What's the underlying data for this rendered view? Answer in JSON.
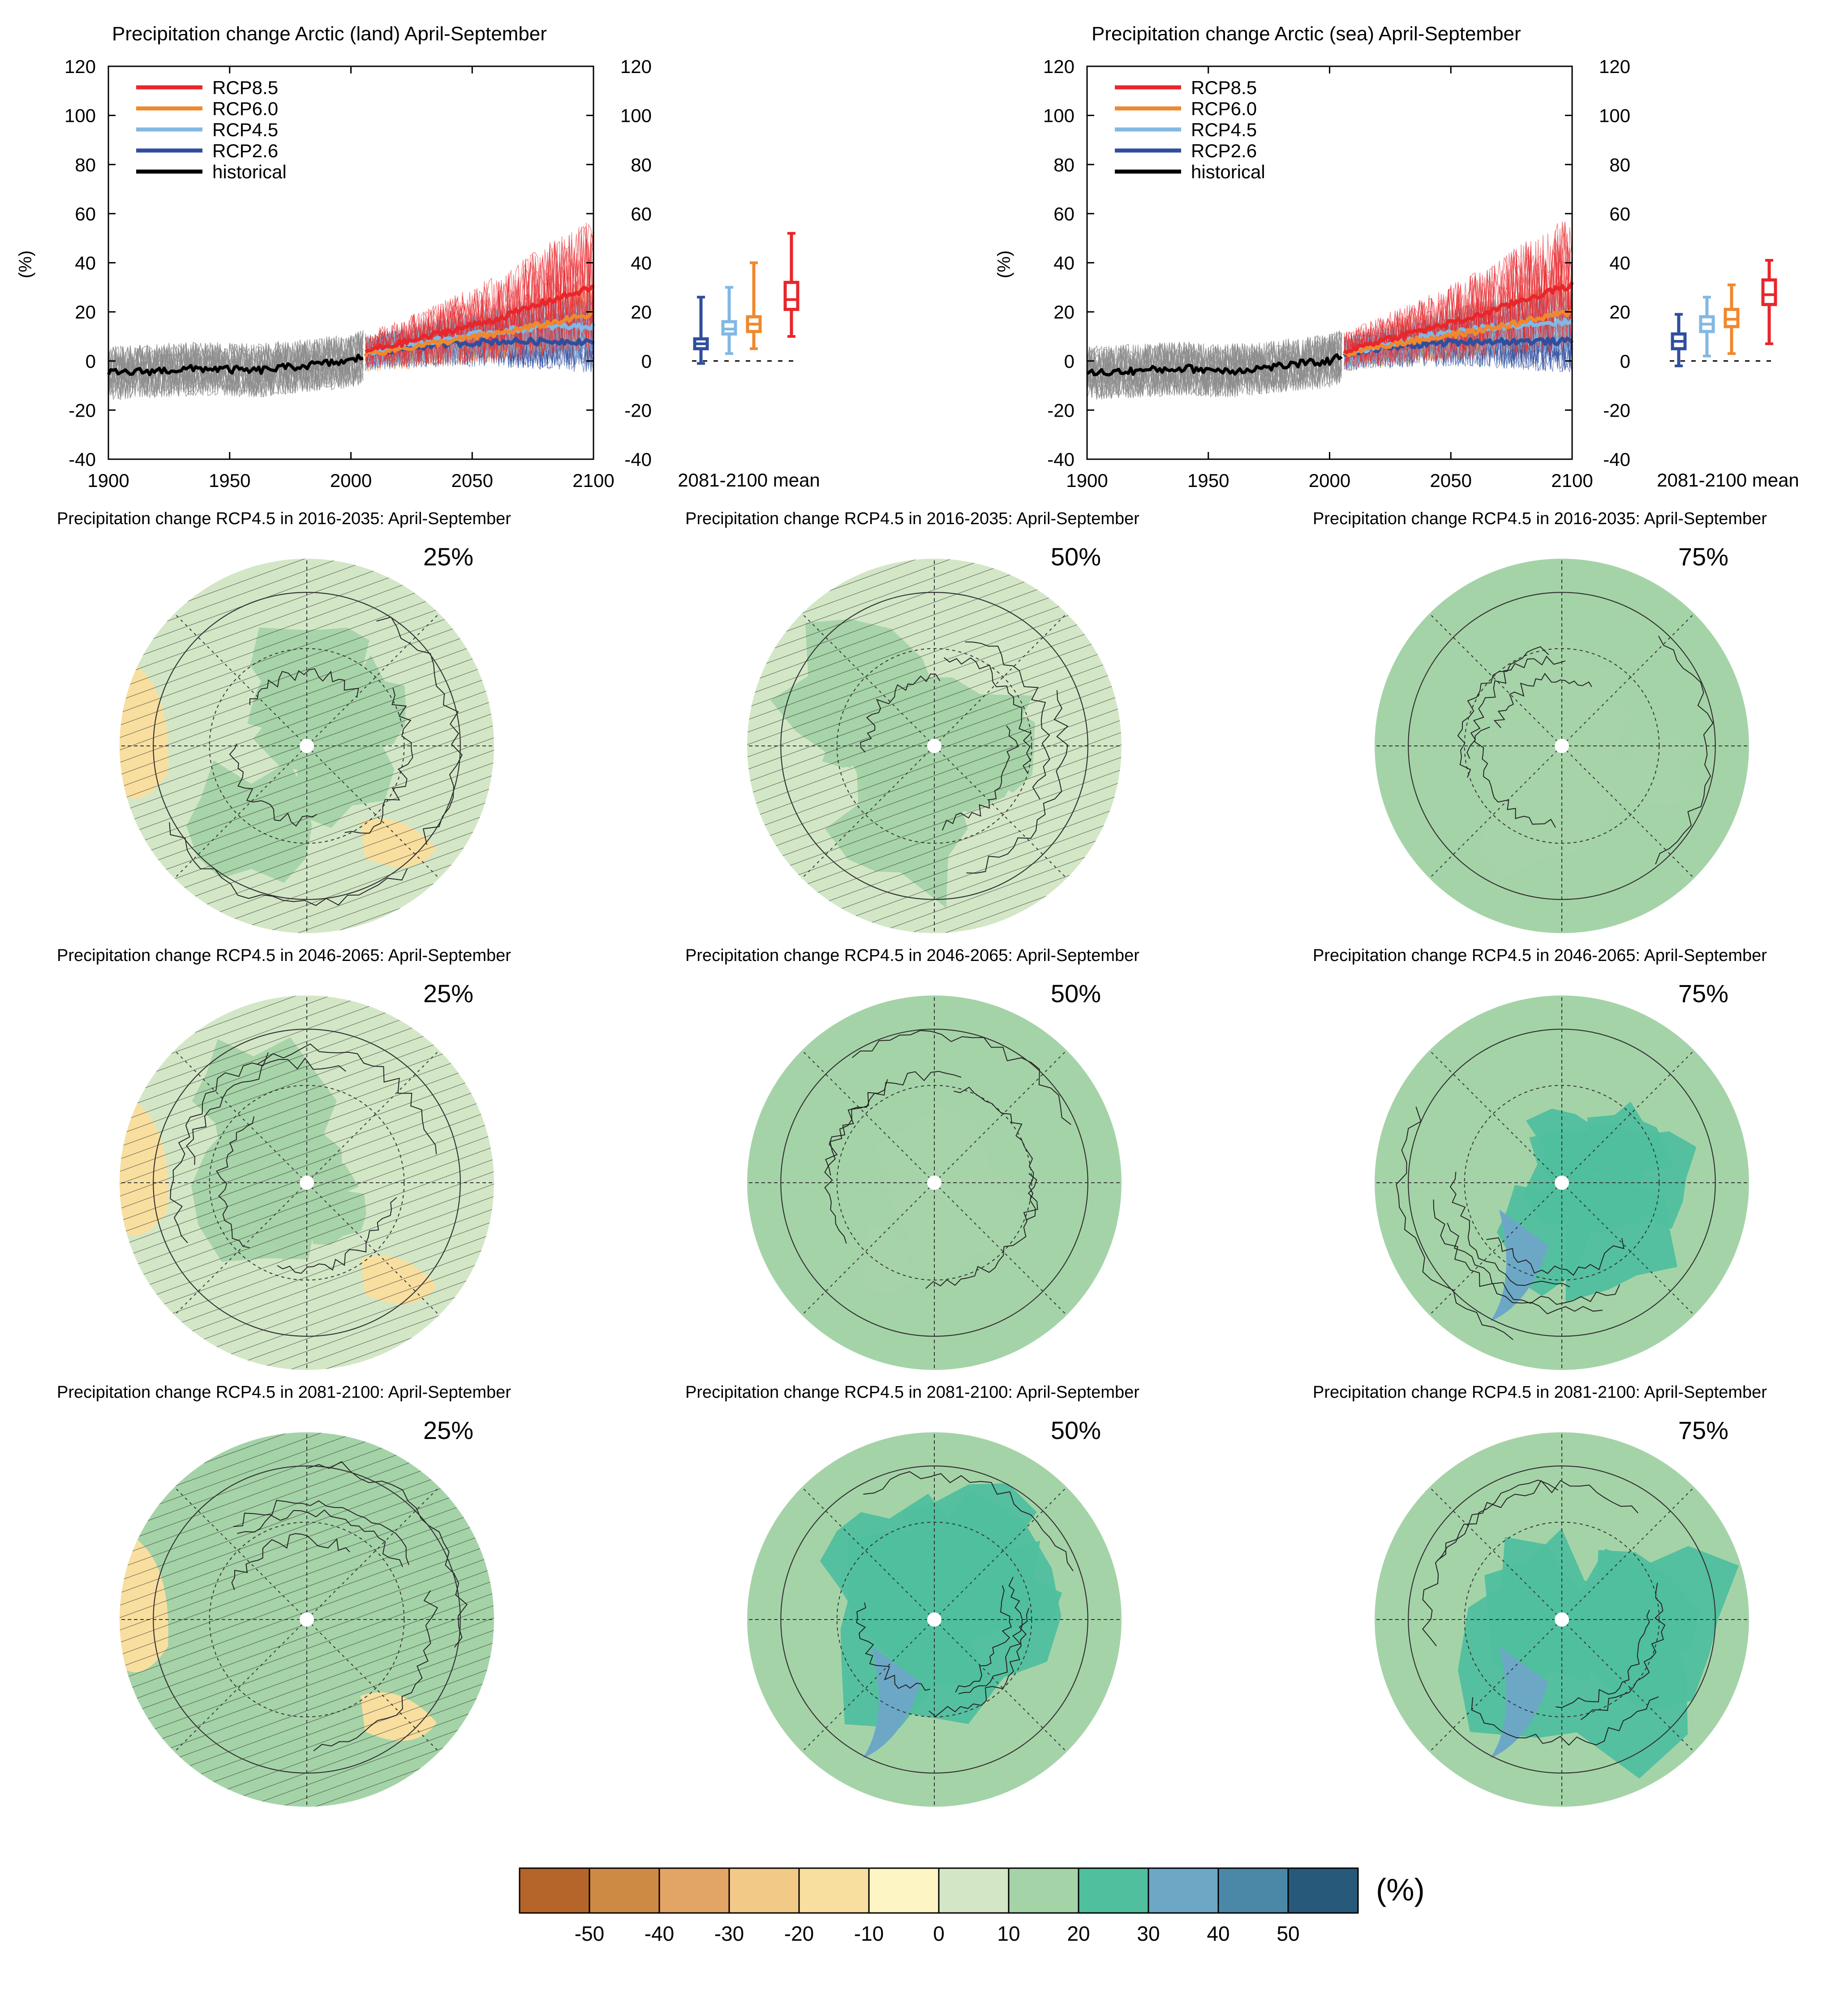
{
  "colors": {
    "rcp85": "#e8262b",
    "rcp60": "#f0882d",
    "rcp45": "#82b8e3",
    "rcp26": "#2f4e9e",
    "historical": "#000000",
    "ensemble_grey": "#8c8c8c"
  },
  "timeseries_panels": [
    {
      "id": "land",
      "title": "Precipitation change Arctic (land) April-September",
      "ylabel": "(%)",
      "mean_label": "2081-2100 mean"
    },
    {
      "id": "sea",
      "title": "Precipitation change Arctic (sea) April-September",
      "ylabel": "(%)",
      "mean_label": "2081-2100 mean"
    }
  ],
  "map_panels": [
    {
      "title": "Precipitation change RCP4.5 in 2016-2035: April-September",
      "percentile": "25%"
    },
    {
      "title": "Precipitation change RCP4.5 in 2016-2035: April-September",
      "percentile": "50%"
    },
    {
      "title": "Precipitation change RCP4.5 in 2016-2035: April-September",
      "percentile": "75%"
    },
    {
      "title": "Precipitation change RCP4.5 in 2046-2065: April-September",
      "percentile": "25%"
    },
    {
      "title": "Precipitation change RCP4.5 in 2046-2065: April-September",
      "percentile": "50%"
    },
    {
      "title": "Precipitation change RCP4.5 in 2046-2065: April-September",
      "percentile": "75%"
    },
    {
      "title": "Precipitation change RCP4.5 in 2081-2100: April-September",
      "percentile": "25%"
    },
    {
      "title": "Precipitation change RCP4.5 in 2081-2100: April-September",
      "percentile": "50%"
    },
    {
      "title": "Precipitation change RCP4.5 in 2081-2100: April-September",
      "percentile": "75%"
    }
  ],
  "colorbar": {
    "unit": "(%)",
    "ticks": [
      "-50",
      "-40",
      "-30",
      "-20",
      "-10",
      "0",
      "10",
      "20",
      "30",
      "40",
      "50"
    ],
    "colors": [
      "#b5652a",
      "#cd8a45",
      "#e2a565",
      "#f3c987",
      "#f8dfa0",
      "#fdf5c4",
      "#d3e7c7",
      "#a5d3a8",
      "#4fbf9e",
      "#6ca8c6",
      "#4b88a8",
      "#275a7a"
    ]
  },
  "chart_data": [
    {
      "type": "line",
      "title": "Precipitation change Arctic (land) April-September",
      "xlabel": "",
      "ylabel": "(%)",
      "xlim": [
        1900,
        2100
      ],
      "ylim": [
        -40,
        120
      ],
      "x_ticks": [
        1900,
        1950,
        2000,
        2050,
        2100
      ],
      "y_ticks": [
        -40,
        -20,
        0,
        20,
        40,
        60,
        80,
        100,
        120
      ],
      "legend_position": "top-left",
      "legend": [
        "RCP8.5",
        "RCP6.0",
        "RCP4.5",
        "RCP2.6",
        "historical"
      ],
      "series": [
        {
          "name": "historical",
          "x": [
            1900,
            1920,
            1940,
            1960,
            1980,
            2000,
            2005
          ],
          "values": [
            -5,
            -4,
            -3,
            -4,
            -2,
            0,
            2
          ]
        },
        {
          "name": "RCP2.6",
          "x": [
            2006,
            2020,
            2040,
            2060,
            2080,
            2100
          ],
          "values": [
            3,
            5,
            7,
            8,
            8,
            8
          ]
        },
        {
          "name": "RCP4.5",
          "x": [
            2006,
            2020,
            2040,
            2060,
            2080,
            2100
          ],
          "values": [
            3,
            6,
            9,
            12,
            14,
            14
          ]
        },
        {
          "name": "RCP6.0",
          "x": [
            2006,
            2020,
            2040,
            2060,
            2080,
            2100
          ],
          "values": [
            3,
            5,
            8,
            11,
            15,
            19
          ]
        },
        {
          "name": "RCP8.5",
          "x": [
            2006,
            2020,
            2040,
            2060,
            2080,
            2100
          ],
          "values": [
            4,
            7,
            12,
            17,
            24,
            30
          ]
        }
      ],
      "mean_boxes": {
        "label": "2081-2100 mean",
        "boxes": [
          {
            "name": "RCP2.6",
            "min": -1,
            "q1": 5,
            "median": 7,
            "q3": 9,
            "max": 26
          },
          {
            "name": "RCP4.5",
            "min": 3,
            "q1": 11,
            "median": 13,
            "q3": 16,
            "max": 30
          },
          {
            "name": "RCP6.0",
            "min": 5,
            "q1": 12,
            "median": 15,
            "q3": 18,
            "max": 40
          },
          {
            "name": "RCP8.5",
            "min": 10,
            "q1": 21,
            "median": 25,
            "q3": 32,
            "max": 52
          }
        ]
      }
    },
    {
      "type": "line",
      "title": "Precipitation change Arctic (sea) April-September",
      "xlabel": "",
      "ylabel": "(%)",
      "xlim": [
        1900,
        2100
      ],
      "ylim": [
        -40,
        120
      ],
      "x_ticks": [
        1900,
        1950,
        2000,
        2050,
        2100
      ],
      "y_ticks": [
        -40,
        -20,
        0,
        20,
        40,
        60,
        80,
        100,
        120
      ],
      "legend_position": "top-left",
      "legend": [
        "RCP8.5",
        "RCP6.0",
        "RCP4.5",
        "RCP2.6",
        "historical"
      ],
      "series": [
        {
          "name": "historical",
          "x": [
            1900,
            1920,
            1940,
            1960,
            1980,
            2000,
            2005
          ],
          "values": [
            -5,
            -4,
            -3,
            -4,
            -2,
            0,
            2
          ]
        },
        {
          "name": "RCP2.6",
          "x": [
            2006,
            2020,
            2040,
            2060,
            2080,
            2100
          ],
          "values": [
            3,
            5,
            7,
            8,
            8,
            8
          ]
        },
        {
          "name": "RCP4.5",
          "x": [
            2006,
            2020,
            2040,
            2060,
            2080,
            2100
          ],
          "values": [
            3,
            6,
            10,
            13,
            15,
            16
          ]
        },
        {
          "name": "RCP6.0",
          "x": [
            2006,
            2020,
            2040,
            2060,
            2080,
            2100
          ],
          "values": [
            3,
            6,
            9,
            12,
            16,
            20
          ]
        },
        {
          "name": "RCP8.5",
          "x": [
            2006,
            2020,
            2040,
            2060,
            2080,
            2100
          ],
          "values": [
            4,
            8,
            13,
            18,
            25,
            31
          ]
        }
      ],
      "mean_boxes": {
        "label": "2081-2100 mean",
        "boxes": [
          {
            "name": "RCP2.6",
            "min": -2,
            "q1": 5,
            "median": 8,
            "q3": 11,
            "max": 19
          },
          {
            "name": "RCP4.5",
            "min": 2,
            "q1": 12,
            "median": 15,
            "q3": 18,
            "max": 26
          },
          {
            "name": "RCP6.0",
            "min": 3,
            "q1": 14,
            "median": 17,
            "q3": 21,
            "max": 31
          },
          {
            "name": "RCP8.5",
            "min": 7,
            "q1": 23,
            "median": 27,
            "q3": 33,
            "max": 41
          }
        ]
      }
    }
  ]
}
